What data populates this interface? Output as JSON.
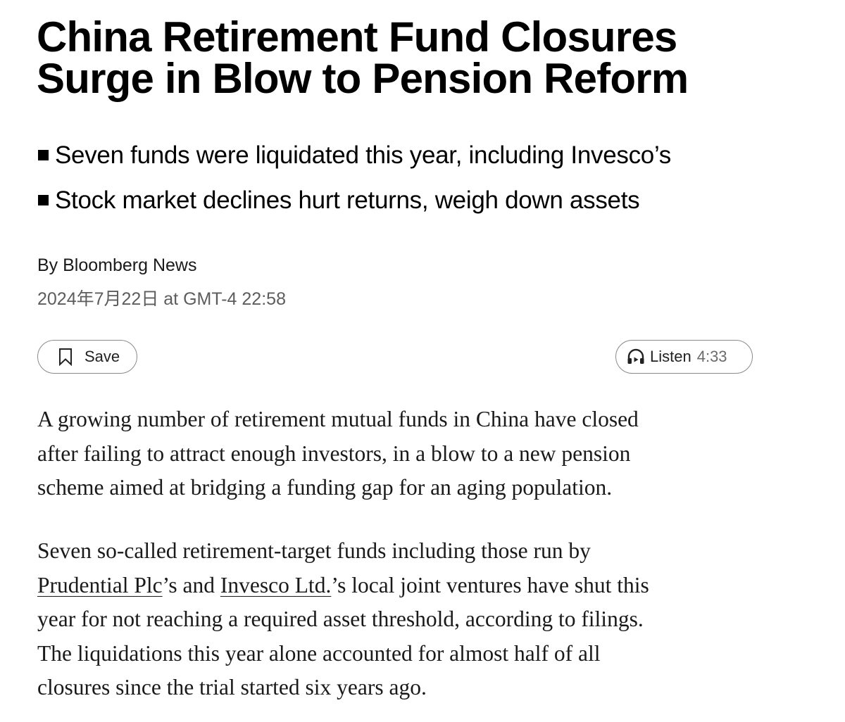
{
  "article": {
    "headline_lines": [
      "China Retirement Fund Closures",
      "Surge in Blow to Pension Reform"
    ],
    "bullets": [
      "Seven funds were liquidated this year, including Invesco’s",
      "Stock market declines hurt returns, weigh down assets"
    ],
    "byline": "By Bloomberg News",
    "timestamp": "2024年7月22日 at GMT-4 22:58"
  },
  "actions": {
    "save_label": "Save",
    "save_icon": "bookmark-icon",
    "listen_label": "Listen",
    "listen_duration": "4:33",
    "listen_icon": "headphones-icon"
  },
  "body": {
    "paragraph1_lines": [
      "A growing number of retirement mutual funds in China have closed",
      "after failing to attract enough investors, in a blow to a new pension",
      "scheme aimed at bridging a funding gap for an aging population."
    ],
    "paragraph2": {
      "line1": "Seven so-called retirement-target funds including those run by",
      "link1": "Prudential Plc",
      "line2_mid": "’s and ",
      "link2": "Invesco Ltd.",
      "line2_end": "’s local joint ventures have shut this",
      "line3": "year for not reaching a required asset threshold, according to filings.",
      "line4": "The liquidations this year alone accounted for almost half of all",
      "line5": "closures since the trial started six years ago."
    }
  },
  "colors": {
    "text": "#000000",
    "muted": "#5d5d5d",
    "pill_border": "#8a8a8a"
  }
}
